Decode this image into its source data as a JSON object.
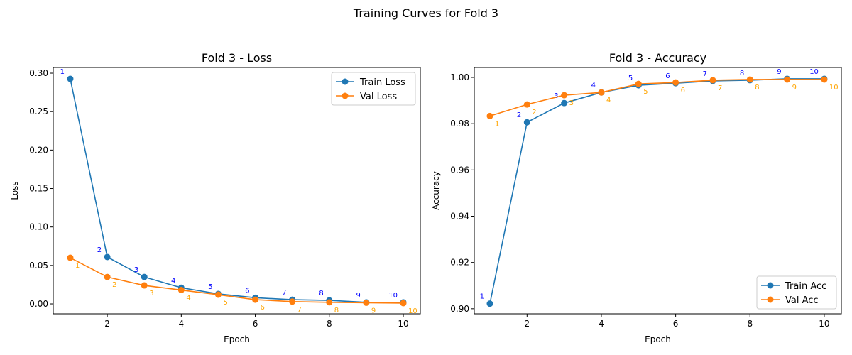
{
  "suptitle": "Training Curves for Fold 3",
  "chart_data": [
    {
      "type": "line",
      "title": "Fold 3 - Loss",
      "xlabel": "Epoch",
      "ylabel": "Loss",
      "xlim": [
        0.54,
        10.46
      ],
      "ylim": [
        -0.0129,
        0.3074
      ],
      "xticks": [
        2,
        4,
        6,
        8,
        10
      ],
      "yticks": [
        0.0,
        0.05,
        0.1,
        0.15,
        0.2,
        0.25,
        0.3
      ],
      "ytick_labels": [
        "0.00",
        "0.05",
        "0.10",
        "0.15",
        "0.20",
        "0.25",
        "0.30"
      ],
      "legend": "upper right",
      "grid": false,
      "x": [
        1,
        2,
        3,
        4,
        5,
        6,
        7,
        8,
        9,
        10
      ],
      "series": [
        {
          "name": "Train Loss",
          "color": "#1f77b4",
          "label_color": "#0000ff",
          "values": [
            0.2926,
            0.061,
            0.035,
            0.021,
            0.013,
            0.008,
            0.0055,
            0.0046,
            0.002,
            0.002
          ]
        },
        {
          "name": "Val Loss",
          "color": "#ff7f0e",
          "label_color": "#ffa500",
          "values": [
            0.06,
            0.035,
            0.024,
            0.018,
            0.012,
            0.0055,
            0.003,
            0.002,
            0.0015,
            0.001
          ]
        }
      ],
      "point_labels": [
        "1",
        "2",
        "3",
        "4",
        "5",
        "6",
        "7",
        "8",
        "9",
        "10"
      ]
    },
    {
      "type": "line",
      "title": "Fold 3 - Accuracy",
      "xlabel": "Epoch",
      "ylabel": "Accuracy",
      "xlim": [
        0.58,
        10.46
      ],
      "ylim": [
        0.8978,
        1.0043
      ],
      "xticks": [
        2,
        4,
        6,
        8,
        10
      ],
      "yticks": [
        0.9,
        0.92,
        0.94,
        0.96,
        0.98,
        1.0
      ],
      "ytick_labels": [
        "0.90",
        "0.92",
        "0.94",
        "0.96",
        "0.98",
        "1.00"
      ],
      "legend": "lower right",
      "grid": false,
      "x": [
        1,
        2,
        3,
        4,
        5,
        6,
        7,
        8,
        9,
        10
      ],
      "series": [
        {
          "name": "Train Acc",
          "color": "#1f77b4",
          "label_color": "#0000ff",
          "values": [
            0.9022,
            0.9806,
            0.9889,
            0.9935,
            0.9966,
            0.9975,
            0.9985,
            0.9988,
            0.9994,
            0.9994
          ]
        },
        {
          "name": "Val Acc",
          "color": "#ff7f0e",
          "label_color": "#ffa500",
          "values": [
            0.9833,
            0.9883,
            0.9923,
            0.9935,
            0.9972,
            0.9978,
            0.9988,
            0.9991,
            0.9991,
            0.9991
          ]
        }
      ],
      "point_labels": [
        "1",
        "2",
        "3",
        "4",
        "5",
        "6",
        "7",
        "8",
        "9",
        "10"
      ]
    }
  ]
}
